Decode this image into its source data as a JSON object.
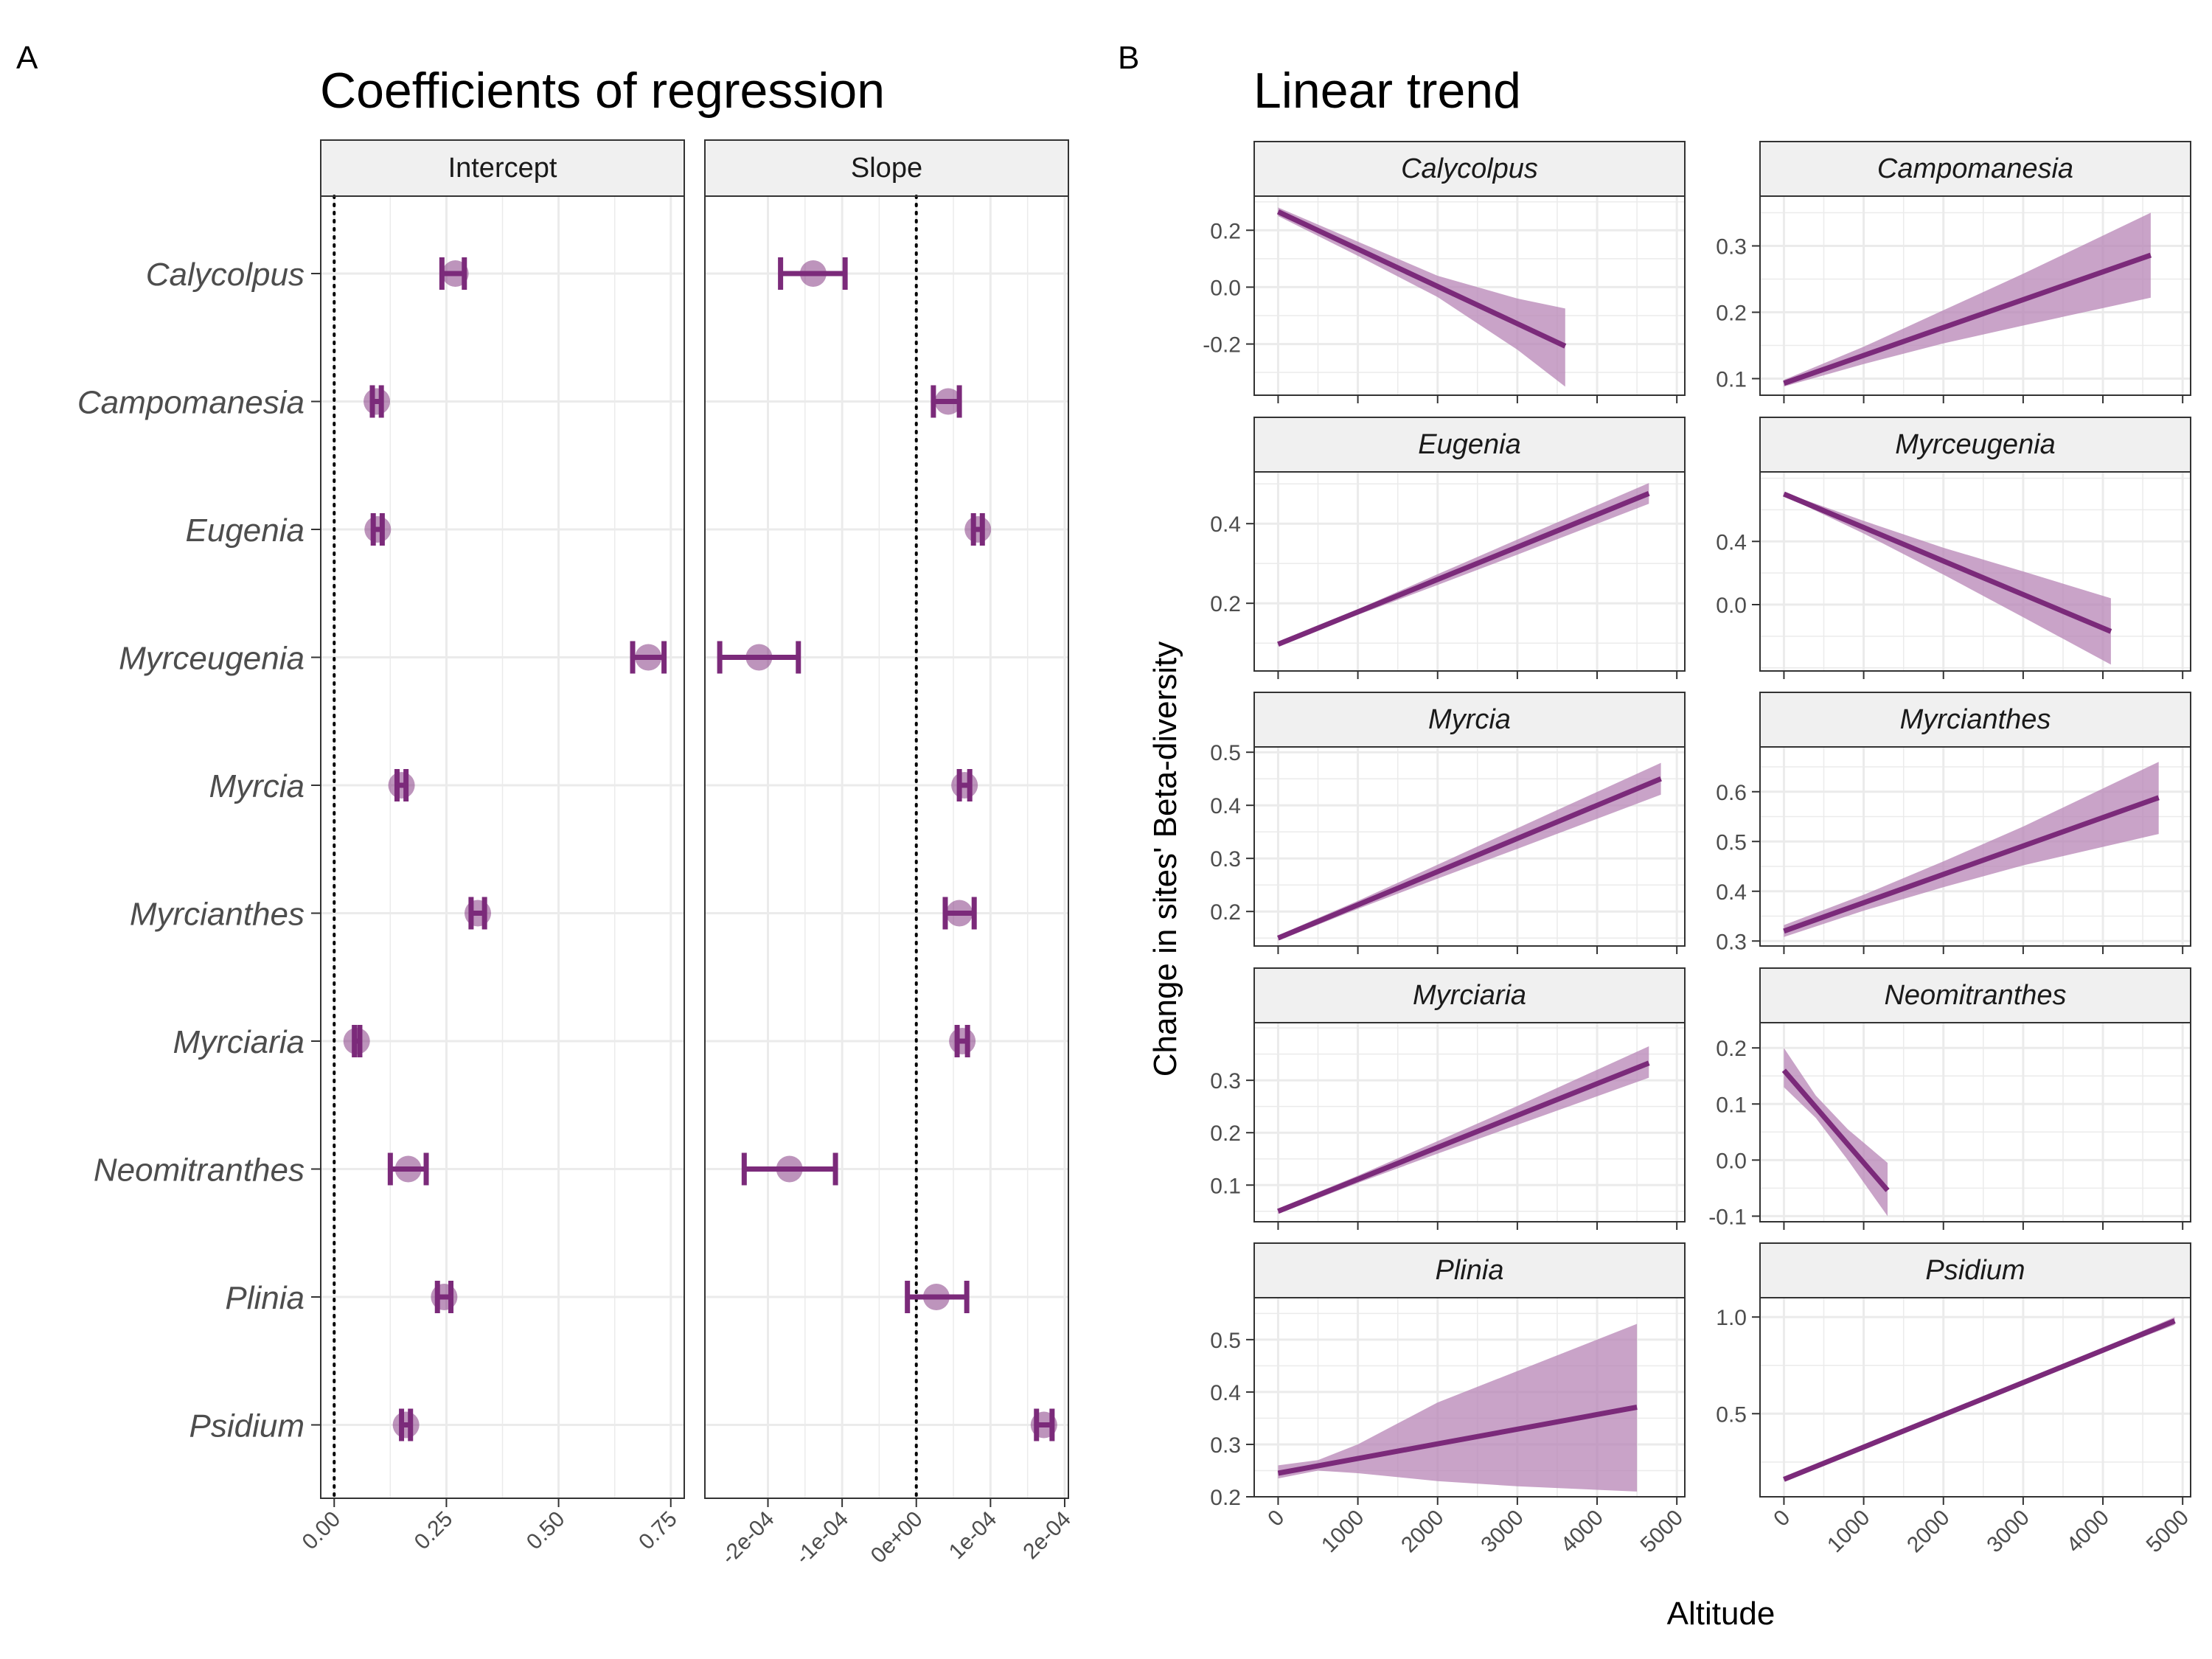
{
  "panel_a": {
    "label": "A",
    "title": "Coefficients of regression",
    "genera": [
      "Calycolpus",
      "Campomanesia",
      "Eugenia",
      "Myrceugenia",
      "Myrcia",
      "Myrcianthes",
      "Myrciaria",
      "Neomitranthes",
      "Plinia",
      "Psidium"
    ]
  },
  "panel_b": {
    "label": "B",
    "title": "Linear trend",
    "ylabel": "Change in sites' Beta-diversity",
    "xlabel": "Altitude"
  },
  "colors": {
    "accent": "#7b2a7a",
    "band": "#b784b6",
    "strip": "#f0f0f0",
    "grid": "#ebebeb"
  },
  "chart_data": [
    {
      "type": "scatter",
      "facet": "Intercept",
      "xlim": [
        -0.03,
        0.78
      ],
      "ticks": [
        0.0,
        0.25,
        0.5,
        0.75
      ],
      "tick_labels": [
        "0.00",
        "0.25",
        "0.50",
        "0.75"
      ],
      "reference_line": 0,
      "points": [
        {
          "genus": "Calycolpus",
          "est": 0.27,
          "lo": 0.24,
          "hi": 0.29
        },
        {
          "genus": "Campomanesia",
          "est": 0.095,
          "lo": 0.085,
          "hi": 0.105
        },
        {
          "genus": "Eugenia",
          "est": 0.097,
          "lo": 0.087,
          "hi": 0.107
        },
        {
          "genus": "Myrceugenia",
          "est": 0.7,
          "lo": 0.665,
          "hi": 0.735
        },
        {
          "genus": "Myrcia",
          "est": 0.15,
          "lo": 0.14,
          "hi": 0.16
        },
        {
          "genus": "Myrcianthes",
          "est": 0.32,
          "lo": 0.305,
          "hi": 0.335
        },
        {
          "genus": "Myrciaria",
          "est": 0.05,
          "lo": 0.045,
          "hi": 0.057
        },
        {
          "genus": "Neomitranthes",
          "est": 0.165,
          "lo": 0.125,
          "hi": 0.205
        },
        {
          "genus": "Plinia",
          "est": 0.245,
          "lo": 0.23,
          "hi": 0.26
        },
        {
          "genus": "Psidium",
          "est": 0.16,
          "lo": 0.15,
          "hi": 0.17
        }
      ]
    },
    {
      "type": "scatter",
      "facet": "Slope",
      "xlim": [
        -0.000285,
        0.000205
      ],
      "ticks": [
        -0.0002,
        -0.0001,
        0,
        0.0001,
        0.0002
      ],
      "tick_labels": [
        "-2e-04",
        "-1e-04",
        "0e+00",
        "1e-04",
        "2e-04"
      ],
      "reference_line": 0,
      "points": [
        {
          "genus": "Calycolpus",
          "est": -0.000139,
          "lo": -0.000183,
          "hi": -9.6e-05
        },
        {
          "genus": "Campomanesia",
          "est": 4.3e-05,
          "lo": 2.3e-05,
          "hi": 5.8e-05
        },
        {
          "genus": "Eugenia",
          "est": 8.3e-05,
          "lo": 7.7e-05,
          "hi": 8.9e-05
        },
        {
          "genus": "Myrceugenia",
          "est": -0.000212,
          "lo": -0.000265,
          "hi": -0.000159
        },
        {
          "genus": "Myrcia",
          "est": 6.5e-05,
          "lo": 5.8e-05,
          "hi": 7.2e-05
        },
        {
          "genus": "Myrcianthes",
          "est": 5.8e-05,
          "lo": 3.9e-05,
          "hi": 7.8e-05
        },
        {
          "genus": "Myrciaria",
          "est": 6.2e-05,
          "lo": 5.5e-05,
          "hi": 6.9e-05
        },
        {
          "genus": "Neomitranthes",
          "est": -0.000171,
          "lo": -0.000232,
          "hi": -0.000109
        },
        {
          "genus": "Plinia",
          "est": 2.7e-05,
          "lo": -1.2e-05,
          "hi": 6.8e-05
        },
        {
          "genus": "Psidium",
          "est": 0.000172,
          "lo": 0.000162,
          "hi": 0.000183
        }
      ]
    },
    {
      "type": "line",
      "xlim": [
        -300,
        5100
      ],
      "x_ticks": [
        0,
        1000,
        2000,
        3000,
        4000,
        5000
      ],
      "facets": [
        {
          "genus": "Calycolpus",
          "ylim": [
            -0.38,
            0.32
          ],
          "y_ticks": [
            -0.2,
            0.0,
            0.2
          ],
          "y_tick_labels": [
            "-0.2",
            "0.0",
            "0.2"
          ],
          "x": [
            0,
            1000,
            2000,
            3000,
            3600
          ],
          "fit": [
            0.265,
            0.1338,
            0.0026,
            -0.1286,
            -0.2073
          ],
          "lo": [
            0.25,
            0.11,
            -0.035,
            -0.22,
            -0.35
          ],
          "hi": [
            0.28,
            0.16,
            0.04,
            -0.04,
            -0.075
          ]
        },
        {
          "genus": "Campomanesia",
          "ylim": [
            0.075,
            0.375
          ],
          "y_ticks": [
            0.1,
            0.2,
            0.3
          ],
          "y_tick_labels": [
            "0.1",
            "0.2",
            "0.3"
          ],
          "x": [
            0,
            1000,
            2000,
            3000,
            4600
          ],
          "fit": [
            0.093,
            0.135,
            0.177,
            0.219,
            0.286
          ],
          "lo": [
            0.088,
            0.122,
            0.153,
            0.18,
            0.222
          ],
          "hi": [
            0.098,
            0.148,
            0.203,
            0.258,
            0.35
          ]
        },
        {
          "genus": "Eugenia",
          "ylim": [
            0.03,
            0.53
          ],
          "y_ticks": [
            0.2,
            0.4
          ],
          "y_tick_labels": [
            "0.2",
            "0.4"
          ],
          "x": [
            0,
            1000,
            2000,
            3000,
            4650
          ],
          "fit": [
            0.097,
            0.1784,
            0.2598,
            0.3412,
            0.476
          ],
          "lo": [
            0.094,
            0.171,
            0.246,
            0.322,
            0.45
          ],
          "hi": [
            0.1,
            0.185,
            0.273,
            0.36,
            0.502
          ]
        },
        {
          "genus": "Myrceugenia",
          "ylim": [
            -0.42,
            0.84
          ],
          "y_ticks": [
            0.0,
            0.4
          ],
          "y_tick_labels": [
            "0.0",
            "0.4"
          ],
          "x": [
            0,
            1000,
            2000,
            3000,
            4100
          ],
          "fit": [
            0.7,
            0.488,
            0.276,
            0.064,
            -0.17
          ],
          "lo": [
            0.69,
            0.45,
            0.19,
            -0.08,
            -0.38
          ],
          "hi": [
            0.71,
            0.53,
            0.36,
            0.21,
            0.04
          ]
        },
        {
          "genus": "Myrcia",
          "ylim": [
            0.135,
            0.51
          ],
          "y_ticks": [
            0.2,
            0.3,
            0.4,
            0.5
          ],
          "y_tick_labels": [
            "0.2",
            "0.3",
            "0.4",
            "0.5"
          ],
          "x": [
            0,
            1000,
            2000,
            3000,
            4800
          ],
          "fit": [
            0.15,
            0.2125,
            0.275,
            0.3375,
            0.45
          ],
          "lo": [
            0.145,
            0.205,
            0.262,
            0.318,
            0.42
          ],
          "hi": [
            0.155,
            0.22,
            0.288,
            0.357,
            0.48
          ]
        },
        {
          "genus": "Myrcianthes",
          "ylim": [
            0.29,
            0.69
          ],
          "y_ticks": [
            0.3,
            0.4,
            0.5,
            0.6
          ],
          "y_tick_labels": [
            "0.3",
            "0.4",
            "0.5",
            "0.6"
          ],
          "x": [
            0,
            1000,
            2000,
            3000,
            4700
          ],
          "fit": [
            0.32,
            0.377,
            0.434,
            0.491,
            0.588
          ],
          "lo": [
            0.308,
            0.361,
            0.408,
            0.452,
            0.515
          ],
          "hi": [
            0.332,
            0.393,
            0.46,
            0.53,
            0.66
          ]
        },
        {
          "genus": "Myrciaria",
          "ylim": [
            0.03,
            0.41
          ],
          "y_ticks": [
            0.1,
            0.2,
            0.3
          ],
          "y_tick_labels": [
            "0.1",
            "0.2",
            "0.3"
          ],
          "x": [
            0,
            1000,
            2000,
            3000,
            4650
          ],
          "fit": [
            0.05,
            0.111,
            0.172,
            0.233,
            0.333
          ],
          "lo": [
            0.045,
            0.104,
            0.16,
            0.215,
            0.305
          ],
          "hi": [
            0.055,
            0.118,
            0.184,
            0.251,
            0.365
          ]
        },
        {
          "genus": "Neomitranthes",
          "ylim": [
            -0.11,
            0.245
          ],
          "y_ticks": [
            -0.1,
            0.0,
            0.1,
            0.2
          ],
          "y_tick_labels": [
            "-0.1",
            "0.0",
            "0.1",
            "0.2"
          ],
          "x": [
            0,
            400,
            800,
            1300
          ],
          "fit": [
            0.16,
            0.094,
            0.028,
            -0.054
          ],
          "lo": [
            0.13,
            0.075,
            0.0,
            -0.1
          ],
          "hi": [
            0.2,
            0.115,
            0.055,
            -0.005
          ]
        },
        {
          "genus": "Plinia",
          "ylim": [
            0.2,
            0.58
          ],
          "y_ticks": [
            0.2,
            0.3,
            0.4,
            0.5
          ],
          "y_tick_labels": [
            "0.2",
            "0.3",
            "0.4",
            "0.5"
          ],
          "x": [
            0,
            500,
            1000,
            2000,
            3000,
            4500
          ],
          "fit": [
            0.245,
            0.259,
            0.273,
            0.301,
            0.329,
            0.371
          ],
          "lo": [
            0.235,
            0.25,
            0.245,
            0.23,
            0.22,
            0.21
          ],
          "hi": [
            0.26,
            0.27,
            0.3,
            0.38,
            0.44,
            0.53
          ]
        },
        {
          "genus": "Psidium",
          "ylim": [
            0.07,
            1.1
          ],
          "y_ticks": [
            0.5,
            1.0
          ],
          "y_tick_labels": [
            "0.5",
            "1.0"
          ],
          "x": [
            0,
            1000,
            2000,
            3000,
            4000,
            4900
          ],
          "fit": [
            0.16,
            0.327,
            0.494,
            0.661,
            0.828,
            0.98
          ],
          "lo": [
            0.155,
            0.322,
            0.488,
            0.653,
            0.816,
            0.96
          ],
          "hi": [
            0.165,
            0.332,
            0.5,
            0.669,
            0.84,
            1.0
          ]
        }
      ]
    }
  ]
}
